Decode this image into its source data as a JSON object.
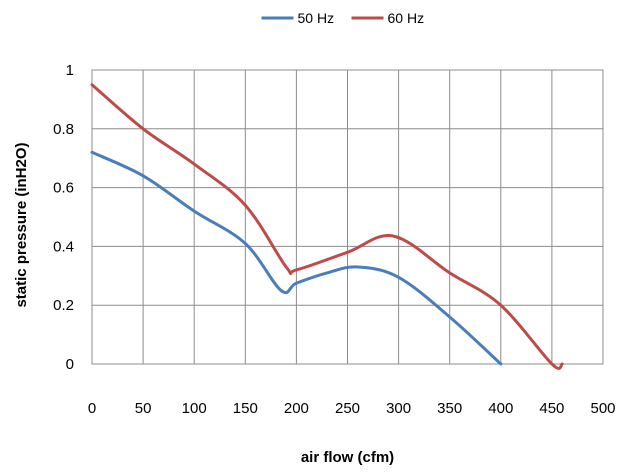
{
  "chart_data": {
    "type": "line",
    "xlabel": "air flow (cfm)",
    "ylabel": "static pressure (inH2O)",
    "xlim": [
      0,
      500
    ],
    "ylim": [
      0,
      1
    ],
    "x_ticks": [
      0,
      50,
      100,
      150,
      200,
      250,
      300,
      350,
      400,
      450,
      500
    ],
    "y_ticks": [
      0,
      0.2,
      0.4,
      0.6,
      0.8,
      1
    ],
    "y_tick_labels": [
      "0",
      "0.2",
      "0.4",
      "0.6",
      "0.8",
      "1"
    ],
    "grid": true,
    "legend_position": "top",
    "series": [
      {
        "name": "50 Hz",
        "color": "#4a7ebb",
        "points": [
          [
            0,
            0.72
          ],
          [
            50,
            0.64
          ],
          [
            100,
            0.52
          ],
          [
            150,
            0.41
          ],
          [
            185,
            0.25
          ],
          [
            200,
            0.275
          ],
          [
            230,
            0.31
          ],
          [
            260,
            0.33
          ],
          [
            300,
            0.295
          ],
          [
            350,
            0.16
          ],
          [
            400,
            0.0
          ]
        ]
      },
      {
        "name": "60 Hz",
        "color": "#be4b48",
        "points": [
          [
            0,
            0.95
          ],
          [
            50,
            0.8
          ],
          [
            100,
            0.68
          ],
          [
            150,
            0.54
          ],
          [
            190,
            0.33
          ],
          [
            200,
            0.32
          ],
          [
            250,
            0.38
          ],
          [
            295,
            0.435
          ],
          [
            350,
            0.31
          ],
          [
            400,
            0.2
          ],
          [
            450,
            0.0
          ],
          [
            460,
            0.0
          ]
        ]
      }
    ]
  }
}
